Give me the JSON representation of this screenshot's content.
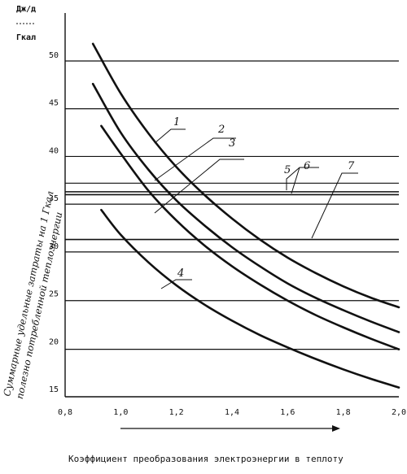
{
  "chart_data": {
    "type": "line",
    "unit_top": "Дж/д",
    "unit_bottom": "Гкал",
    "ylabel_line1": "Суммарные удельные затраты на  1 Гкал",
    "ylabel_line2": "полезно потребленной теплоэнергии",
    "xlabel": "Коэффициент преобразования электроэнергии в теплоту",
    "xlim": [
      0.8,
      2.0
    ],
    "ylim": [
      15,
      50
    ],
    "x_ticks": [
      "0,8",
      "1,0",
      "1,2",
      "1,4",
      "1,6",
      "1,8",
      "2,0"
    ],
    "y_ticks": [
      "15",
      "20",
      "25",
      "30",
      "35",
      "40",
      "45",
      "50"
    ],
    "grid_y": true,
    "curves": [
      {
        "name": "1",
        "x": [
          0.9,
          1.0,
          1.1,
          1.2,
          1.3,
          1.4,
          1.5,
          1.6,
          1.7,
          1.8,
          1.9,
          2.0
        ],
        "y": [
          51.8,
          46.6,
          42.4,
          38.9,
          36.0,
          33.5,
          31.3,
          29.4,
          27.8,
          26.4,
          25.2,
          24.2
        ]
      },
      {
        "name": "2",
        "x": [
          0.9,
          1.0,
          1.1,
          1.2,
          1.3,
          1.4,
          1.5,
          1.6,
          1.7,
          1.8,
          1.9,
          2.0
        ],
        "y": [
          47.6,
          42.5,
          38.6,
          35.4,
          32.8,
          30.5,
          28.5,
          26.7,
          25.2,
          23.9,
          22.7,
          21.6
        ]
      },
      {
        "name": "3",
        "x": [
          0.93,
          1.0,
          1.1,
          1.2,
          1.3,
          1.4,
          1.5,
          1.6,
          1.7,
          1.8,
          1.9,
          2.0
        ],
        "y": [
          43.2,
          40.3,
          36.4,
          33.3,
          30.7,
          28.5,
          26.6,
          24.9,
          23.4,
          22.1,
          20.9,
          19.8
        ]
      },
      {
        "name": "4",
        "x": [
          0.93,
          1.0,
          1.1,
          1.2,
          1.3,
          1.4,
          1.5,
          1.6,
          1.7,
          1.8,
          1.9,
          2.0
        ],
        "y": [
          34.4,
          31.8,
          28.9,
          26.5,
          24.5,
          22.8,
          21.3,
          20.0,
          18.8,
          17.7,
          16.7,
          15.8
        ]
      }
    ],
    "reference_lines": [
      {
        "name": "5",
        "y": 36.0
      },
      {
        "name": "6",
        "y": 36.3
      },
      {
        "name": "7",
        "y": 31.3
      }
    ],
    "grid_lines_y": [
      50.0,
      45.0,
      40.0,
      37.2,
      35.0,
      30.0,
      24.9,
      19.8
    ]
  }
}
